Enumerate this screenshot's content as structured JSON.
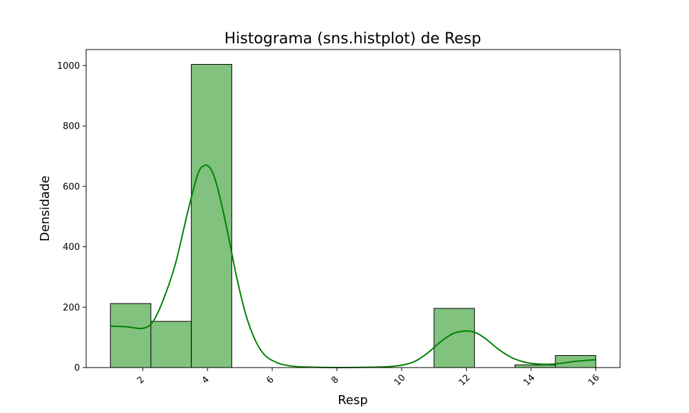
{
  "chart_data": {
    "type": "bar",
    "title": "Histograma (sns.histplot) de Resp",
    "xlabel": "Resp",
    "ylabel": "Densidade",
    "xlim": [
      0.25,
      16.75
    ],
    "ylim": [
      0,
      1053
    ],
    "xticks": [
      2,
      4,
      6,
      8,
      10,
      12,
      14,
      16
    ],
    "yticks": [
      0,
      200,
      400,
      600,
      800,
      1000
    ],
    "bins": [
      {
        "x0": 1.0,
        "x1": 2.25,
        "value": 212
      },
      {
        "x0": 2.25,
        "x1": 3.5,
        "value": 153
      },
      {
        "x0": 3.5,
        "x1": 4.75,
        "value": 1004
      },
      {
        "x0": 4.75,
        "x1": 6.0,
        "value": 0
      },
      {
        "x0": 6.0,
        "x1": 7.25,
        "value": 0
      },
      {
        "x0": 7.25,
        "x1": 8.5,
        "value": 0
      },
      {
        "x0": 8.5,
        "x1": 9.75,
        "value": 0
      },
      {
        "x0": 9.75,
        "x1": 11.0,
        "value": 0
      },
      {
        "x0": 11.0,
        "x1": 12.25,
        "value": 196
      },
      {
        "x0": 12.25,
        "x1": 13.5,
        "value": 0
      },
      {
        "x0": 13.5,
        "x1": 14.75,
        "value": 9
      },
      {
        "x0": 14.75,
        "x1": 16.0,
        "value": 40
      }
    ],
    "kde": {
      "x": [
        1.0,
        1.5,
        2.0,
        2.3,
        2.6,
        3.0,
        3.4,
        3.7,
        3.9,
        4.1,
        4.3,
        4.6,
        4.9,
        5.2,
        5.5,
        5.8,
        6.2,
        6.6,
        7.0,
        8.0,
        9.0,
        9.6,
        10.0,
        10.4,
        10.8,
        11.2,
        11.6,
        12.0,
        12.3,
        12.6,
        13.0,
        13.4,
        13.8,
        14.2,
        14.6,
        15.0,
        15.4,
        16.0
      ],
      "y": [
        137,
        135,
        130,
        150,
        215,
        340,
        520,
        640,
        669,
        658,
        600,
        460,
        300,
        170,
        85,
        38,
        14,
        5,
        2,
        0,
        1,
        3,
        8,
        20,
        48,
        85,
        113,
        121,
        115,
        95,
        60,
        33,
        18,
        12,
        11,
        15,
        21,
        26
      ]
    },
    "colors": {
      "bar_fill": "#80c27e",
      "bar_edge": "#000000",
      "kde_line": "#008000"
    },
    "grid": false,
    "legend": "none"
  }
}
